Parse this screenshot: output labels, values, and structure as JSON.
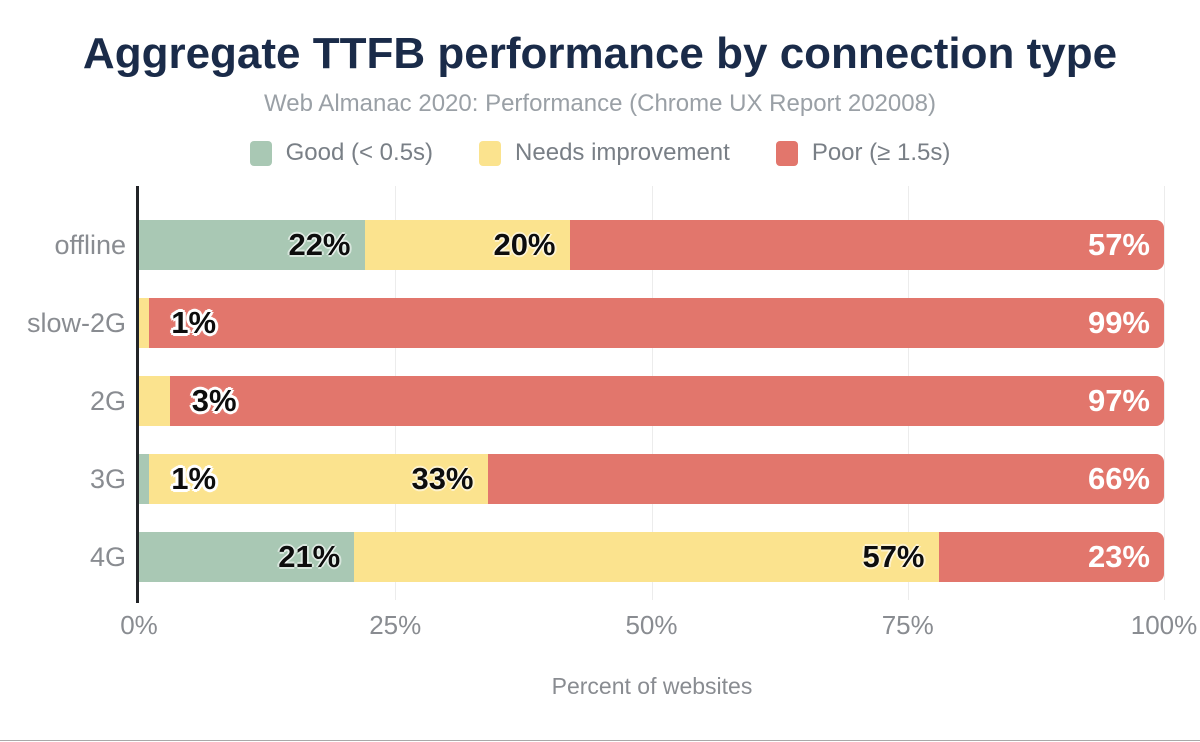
{
  "header": {
    "title": "Aggregate TTFB performance by connection type",
    "subtitle": "Web Almanac 2020: Performance (Chrome UX Report 202008)"
  },
  "palette": {
    "title_navy": "#1a2b49",
    "subtitle_gray": "#9aa0a6",
    "legend_text_gray": "#797f86",
    "axis_text_gray": "#898c91",
    "axis_line": "#222428",
    "gridline": "#ececec",
    "bottom_hairline": "#a9a9a9",
    "good_green": "#a9c8b4",
    "needs_improvement_yellow": "#fbe38e",
    "poor_red": "#e2766c"
  },
  "chart_data": {
    "type": "bar",
    "stacked": true,
    "horizontal": true,
    "title": "Aggregate TTFB performance by connection type",
    "subtitle": "Web Almanac 2020: Performance (Chrome UX Report 202008)",
    "xlabel": "Percent of websites",
    "ylabel": "",
    "xlim": [
      0,
      100
    ],
    "grid": true,
    "legend_position": "top",
    "label_suffix": "%",
    "x_ticks": [
      "0%",
      "25%",
      "50%",
      "75%",
      "100%"
    ],
    "categories": [
      "offline",
      "slow-2G",
      "2G",
      "3G",
      "4G"
    ],
    "series": [
      {
        "name": "Good (< 0.5s)",
        "slug": "good",
        "color": "#a9c8b4",
        "label_color": "#0d0d0d",
        "values": [
          22,
          0,
          0,
          1,
          21
        ]
      },
      {
        "name": "Needs improvement",
        "slug": "needs-improvement",
        "color": "#fbe38e",
        "label_color": "#0d0d0d",
        "values": [
          20,
          1,
          3,
          33,
          57
        ]
      },
      {
        "name": "Poor (≥ 1.5s)",
        "slug": "poor",
        "color": "#e2766c",
        "label_color": "#ffffff",
        "values": [
          57,
          99,
          97,
          66,
          23
        ]
      }
    ]
  }
}
